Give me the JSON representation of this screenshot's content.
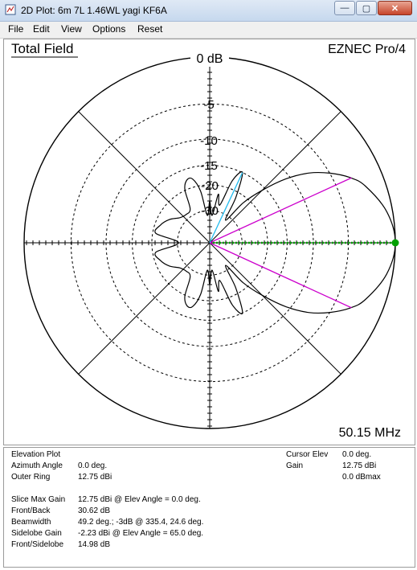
{
  "window": {
    "title": "2D Plot: 6m 7L 1.46WL yagi KF6A",
    "minimize_glyph": "—",
    "maximize_glyph": "▢",
    "close_glyph": "✕"
  },
  "menu": [
    "File",
    "Edit",
    "View",
    "Options",
    "Reset"
  ],
  "plot": {
    "title": "Total Field",
    "brand": "EZNEC Pro/4",
    "frequency": "50.15 MHz",
    "ring_labels": [
      "0 dB",
      "-5",
      "-10",
      "-15",
      "-20",
      "-30"
    ]
  },
  "chart_data": {
    "type": "polar",
    "title": "Total Field",
    "angle_axis": "Elevation, 0 deg at right",
    "radial_rings_db": [
      0,
      -5,
      -10,
      -15,
      -20,
      -30
    ],
    "series": [
      {
        "points": [
          [
            0,
            12.75
          ],
          [
            10,
            12.2
          ],
          [
            20,
            10.8
          ],
          [
            25,
            9.6
          ],
          [
            30,
            7.8
          ],
          [
            35,
            5.5
          ],
          [
            40,
            2.0
          ],
          [
            45,
            -3.0
          ],
          [
            50,
            -9.0
          ],
          [
            55,
            -20.0
          ],
          [
            60,
            -9.0
          ],
          [
            65,
            -2.23
          ],
          [
            70,
            -5.0
          ],
          [
            75,
            -14.0
          ],
          [
            80,
            -10.0
          ],
          [
            85,
            -20.0
          ],
          [
            90,
            -13.0
          ],
          [
            95,
            -20.0
          ],
          [
            100,
            -9.0
          ],
          [
            105,
            -5.0
          ],
          [
            110,
            -4.8
          ],
          [
            115,
            -7.0
          ],
          [
            120,
            -14.0
          ],
          [
            130,
            -15.0
          ],
          [
            140,
            -14.0
          ],
          [
            150,
            -11.0
          ],
          [
            160,
            -9.0
          ],
          [
            170,
            -8.2
          ],
          [
            180,
            -17.88
          ]
        ]
      }
    ],
    "markers": [
      {
        "color": "#00a000",
        "angle": 0,
        "label": "Cursor Elev"
      },
      {
        "color": "#cc00cc",
        "angle": 24.6,
        "label": "-3dB"
      },
      {
        "color": "#cc00cc",
        "angle": 335.4,
        "label": "-3dB"
      },
      {
        "color": "#22bbee",
        "angle": 65.0,
        "label": "Sidelobe"
      }
    ]
  },
  "colors": {
    "pattern": "#000000",
    "cursor_line": "#00a000",
    "beamwidth_lines": "#cc00cc",
    "sidelobe_line": "#22bbee"
  },
  "info": {
    "plot_type": "Elevation Plot",
    "azimuth_label": "Azimuth Angle",
    "azimuth_value": "0.0 deg.",
    "outer_ring_label": "Outer Ring",
    "outer_ring_value": "12.75 dBi",
    "cursor_elev_label": "Cursor Elev",
    "cursor_elev_value": "0.0 deg.",
    "gain_label": "Gain",
    "gain_value": "12.75 dBi",
    "gain_dbmax": "0.0 dBmax",
    "slice_max_label": "Slice Max Gain",
    "slice_max_value": "12.75 dBi @ Elev Angle = 0.0 deg.",
    "front_back_label": "Front/Back",
    "front_back_value": "30.62 dB",
    "beamwidth_label": "Beamwidth",
    "beamwidth_value": "49.2 deg.; -3dB @ 335.4, 24.6 deg.",
    "sidelobe_gain_label": "Sidelobe Gain",
    "sidelobe_gain_value": "-2.23 dBi @ Elev Angle = 65.0 deg.",
    "front_sidelobe_label": "Front/Sidelobe",
    "front_sidelobe_value": "14.98 dB"
  }
}
